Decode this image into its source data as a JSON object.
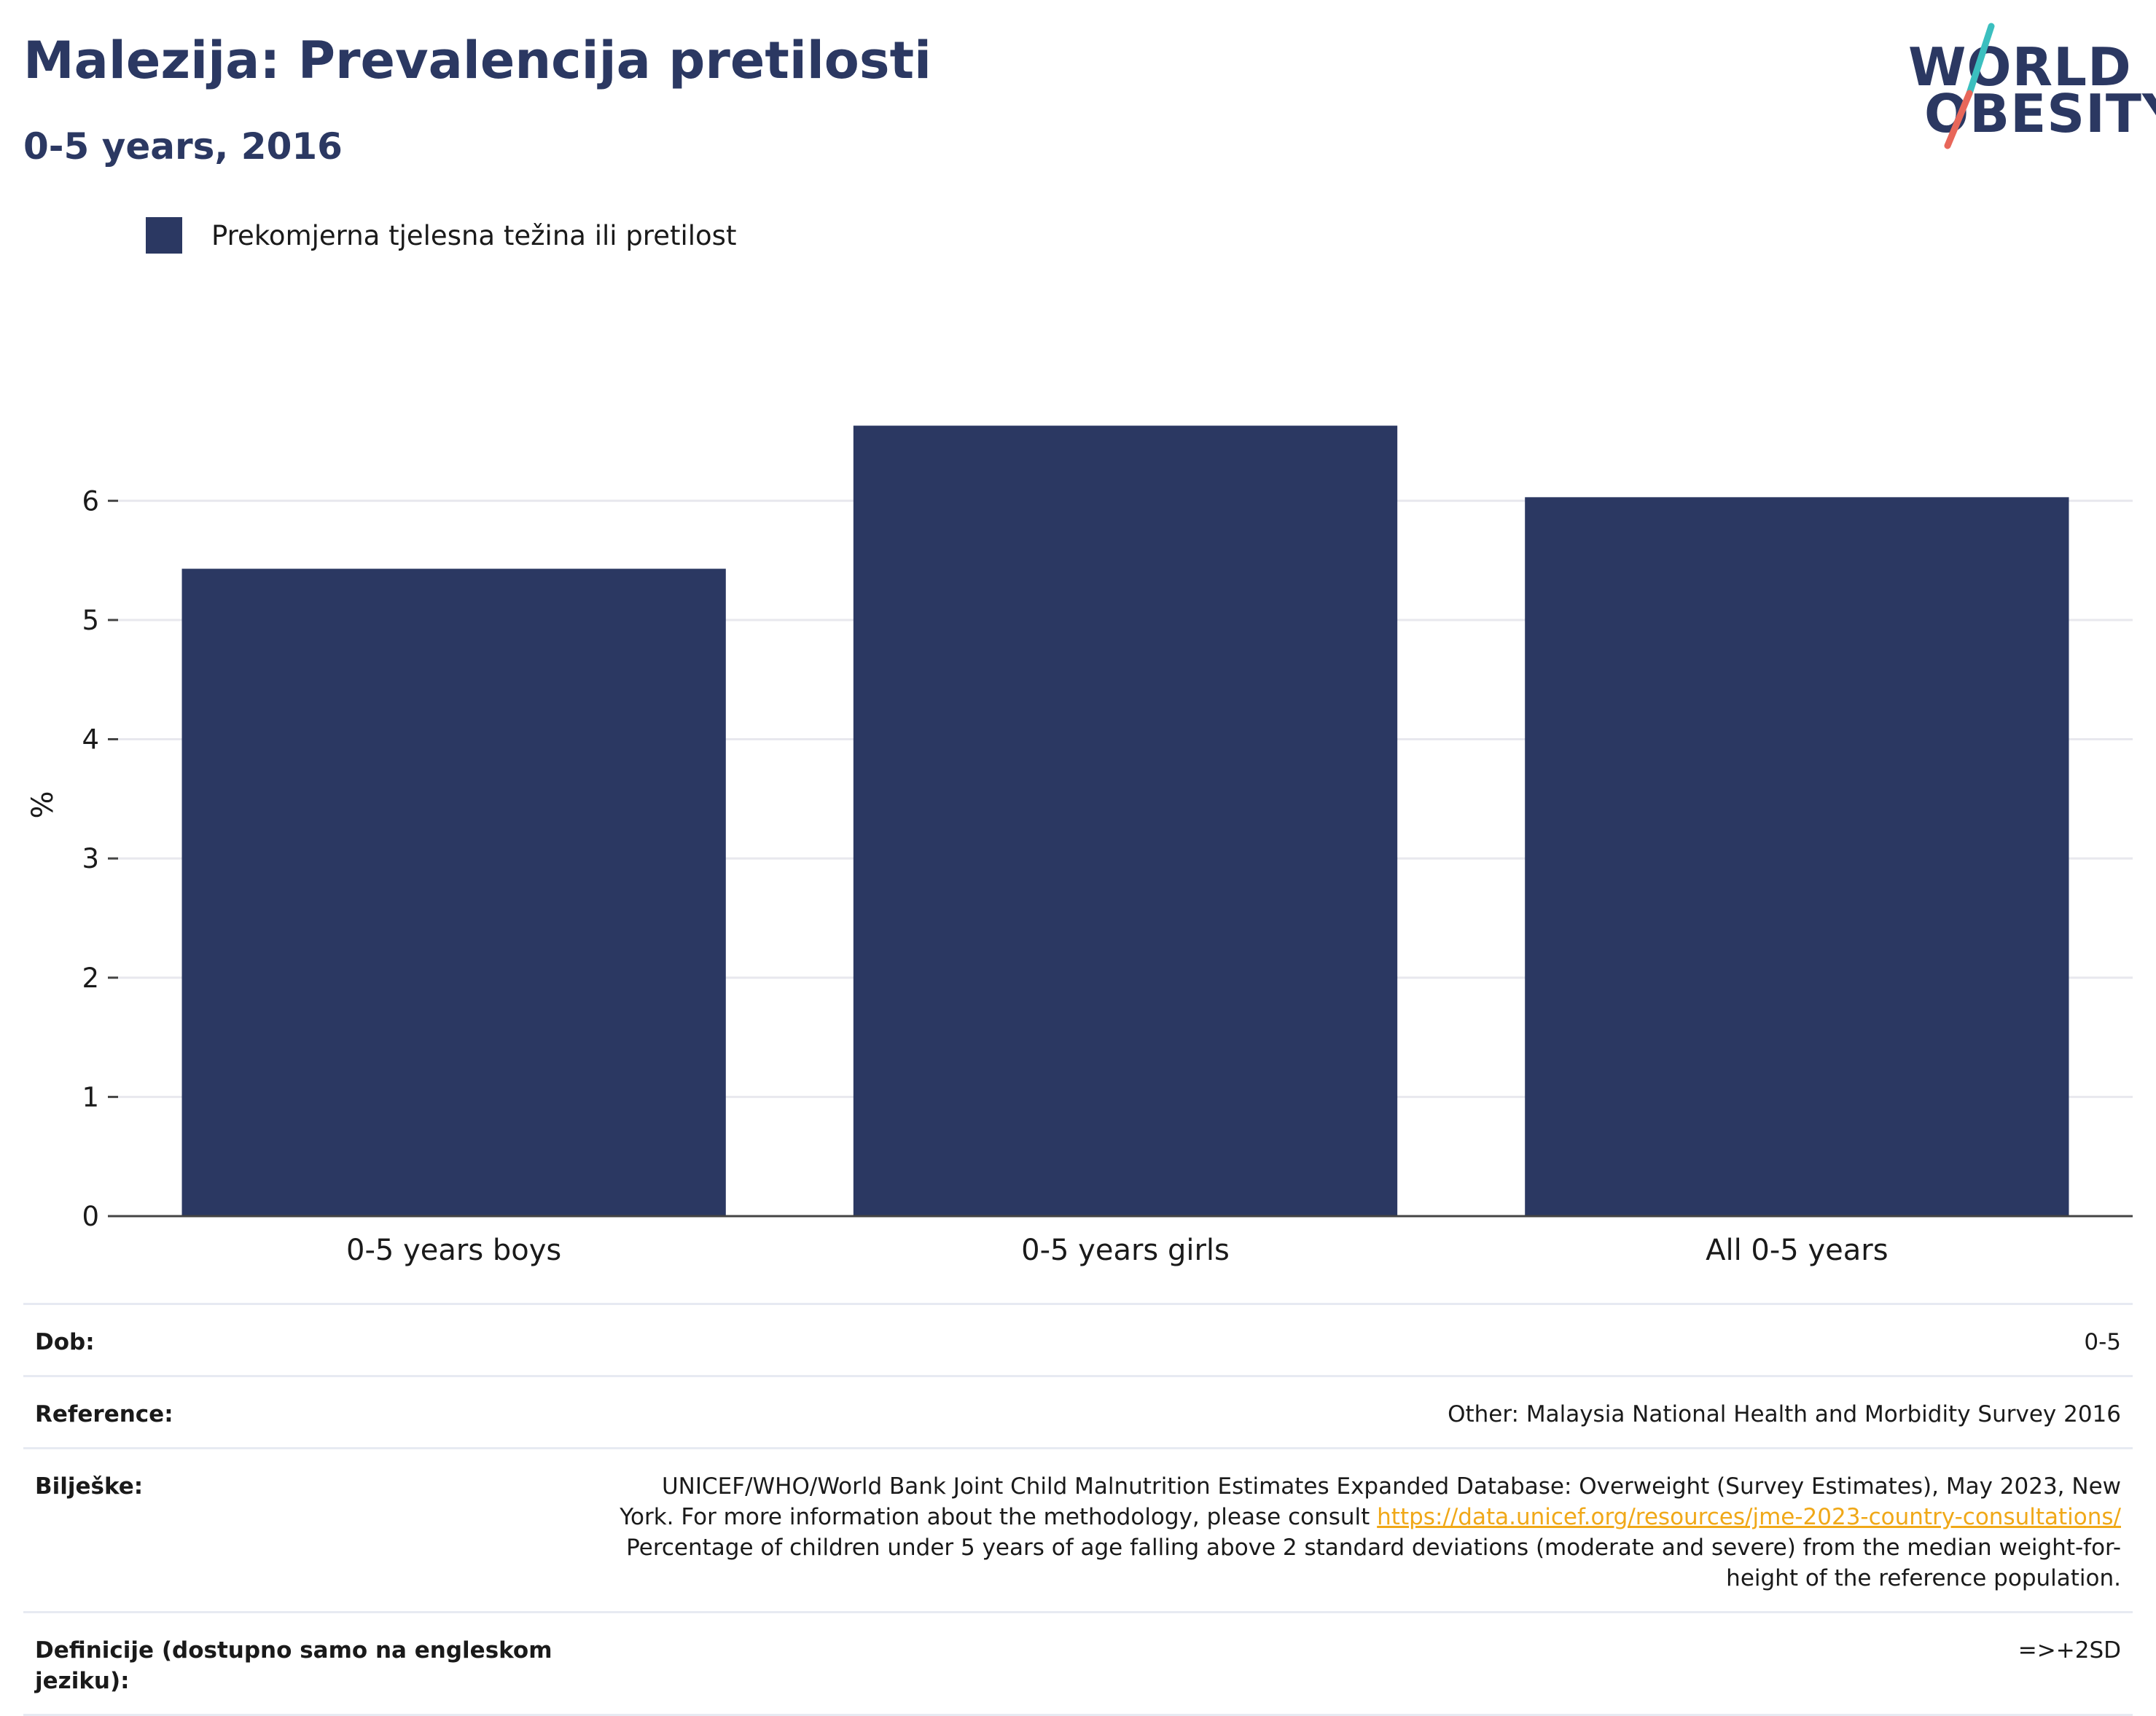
{
  "header": {
    "title": "Malezija: Prevalencija pretilosti",
    "subtitle": "0-5 years, 2016"
  },
  "logo": {
    "line1": "WORLD",
    "line2": "OBESITY",
    "colors": {
      "text": "#2b3862",
      "slash_top": "#3bbfbf",
      "slash_bottom": "#e8675a"
    }
  },
  "legend": {
    "items": [
      {
        "label": "Prekomjerna tjelesna težina ili pretilost",
        "color": "#2b3862"
      }
    ]
  },
  "chart_data": {
    "type": "bar",
    "categories": [
      "0-5 years boys",
      "0-5 years girls",
      "All 0-5 years"
    ],
    "series": [
      {
        "name": "Prekomjerna tjelesna težina ili pretilost",
        "values": [
          5.43,
          6.63,
          6.03
        ],
        "color": "#2b3862"
      }
    ],
    "ylabel": "%",
    "ylim": [
      0,
      6.9
    ],
    "yticks": [
      0,
      1,
      2,
      3,
      4,
      5,
      6
    ],
    "grid": true,
    "legend_position": "top-left"
  },
  "info": {
    "rows": [
      {
        "key": "Dob:",
        "value": "0-5"
      },
      {
        "key": "Reference:",
        "value": "Other: Malaysia National Health and Morbidity Survey 2016"
      },
      {
        "key": "Bilješke:",
        "value_part1": "UNICEF/WHO/World Bank Joint Child Malnutrition Estimates Expanded Database: Overweight (Survey Estimates), May 2023, New York. For more information about the methodology, please consult",
        "link": "https://data.unicef.org/resources/jme-2023-country-consultations/",
        "value_part2": "Percentage of children under 5 years of age falling above 2 standard deviations (moderate and severe) from the median weight-for-height of the reference population."
      },
      {
        "key": "Definicije (dostupno samo na engleskom jeziku):",
        "value": "=>+2SD"
      }
    ]
  }
}
